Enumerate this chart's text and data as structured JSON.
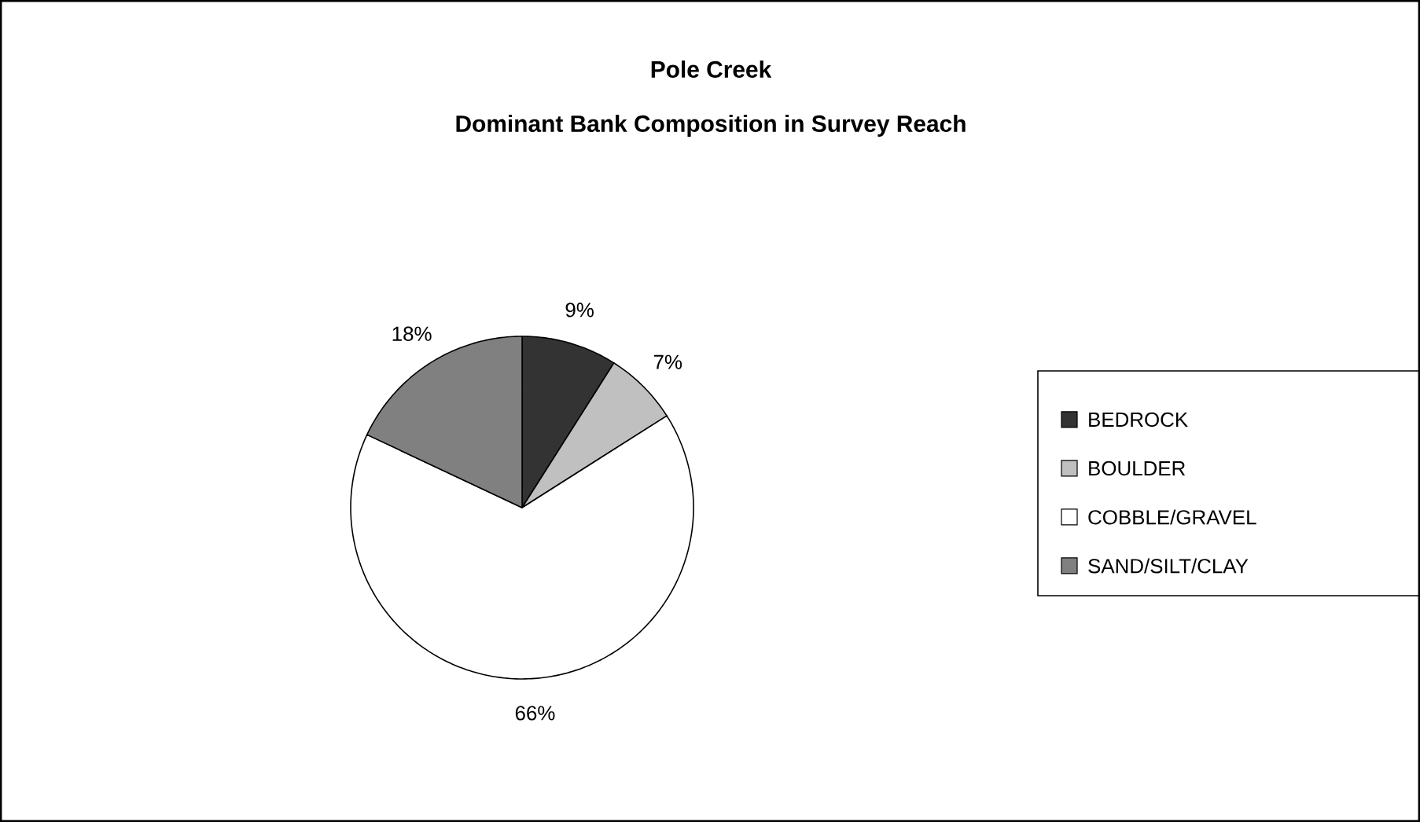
{
  "chart_data": {
    "type": "pie",
    "title": "Pole Creek",
    "subtitle": "Dominant Bank Composition in Survey Reach",
    "categories": [
      "BEDROCK",
      "BOULDER",
      "COBBLE/GRAVEL",
      "SAND/SILT/CLAY"
    ],
    "values": [
      9,
      7,
      66,
      18
    ],
    "value_labels": [
      "9%",
      "7%",
      "66%",
      "18%"
    ],
    "colors": [
      "#333333",
      "#c0c0c0",
      "#ffffff",
      "#808080"
    ],
    "legend": "right"
  }
}
